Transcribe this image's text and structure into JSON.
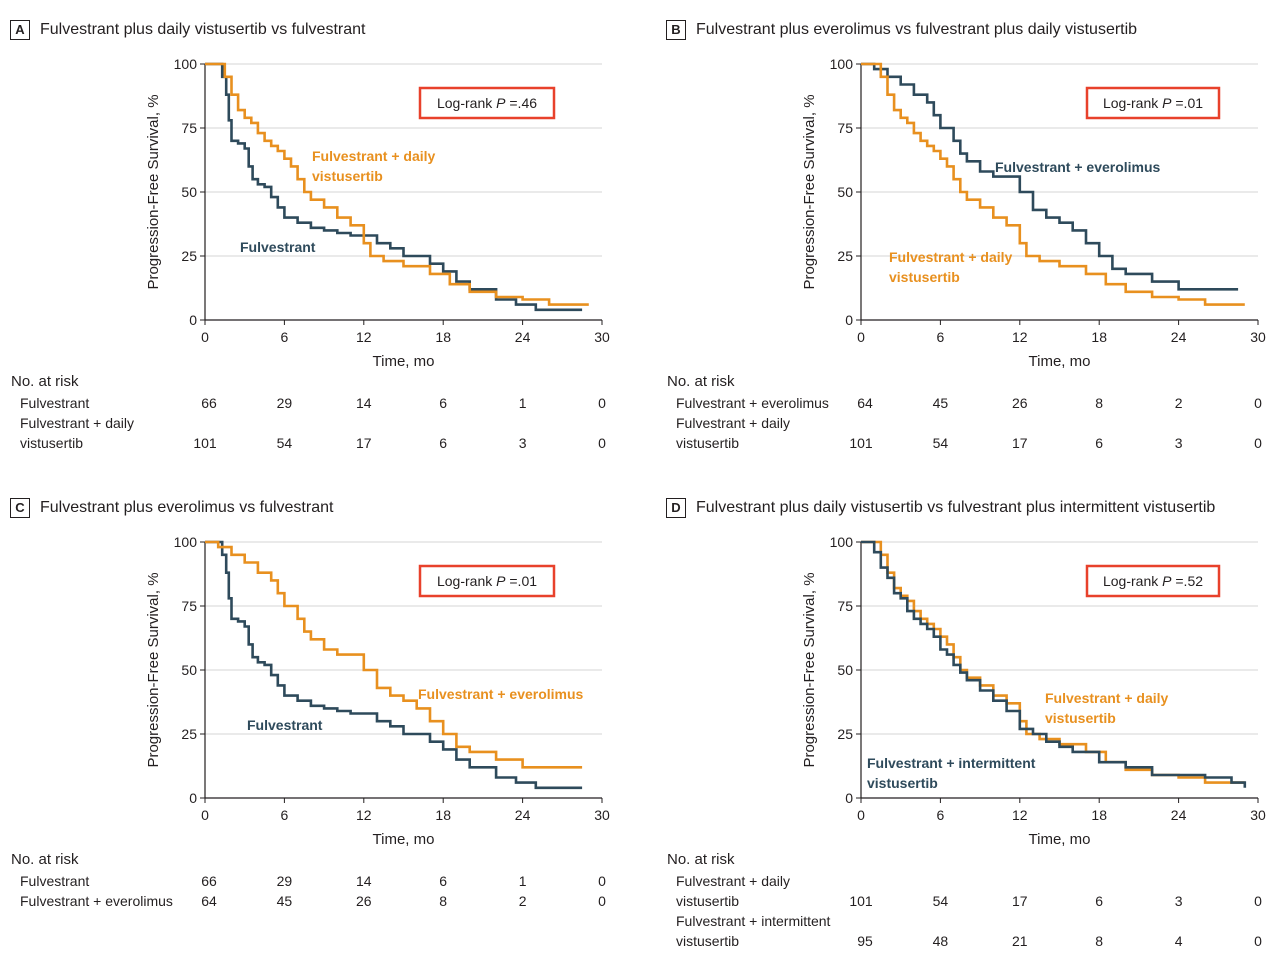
{
  "common": {
    "ylabel": "Progression-Free Survival, %",
    "xlabel": "Time, mo",
    "risk_header": "No. at risk",
    "logrank_prefix": "Log-rank ",
    "logrank_P": "P",
    "colors": {
      "navy": "#2e4a5b",
      "orange": "#e8901f",
      "box": "#e8412b",
      "grid": "#d4d4d4",
      "axis": "#231f20"
    }
  },
  "chart_data": [
    {
      "panel": "A",
      "type": "line",
      "title": "Fulvestrant plus daily vistusertib vs fulvestrant",
      "xlabel": "Time, mo",
      "ylabel": "Progression-Free Survival, %",
      "xlim": [
        0,
        30
      ],
      "ylim": [
        0,
        100
      ],
      "xticks": [
        0,
        6,
        12,
        18,
        24,
        30
      ],
      "yticks": [
        0,
        25,
        50,
        75,
        100
      ],
      "logrank_value": "=.46",
      "series": [
        {
          "name": "Fulvestrant",
          "label_lines": [
            "Fulvestrant"
          ],
          "color": "navy",
          "x": [
            0,
            1,
            1.3,
            1.6,
            1.8,
            2.0,
            2.5,
            3.0,
            3.3,
            3.6,
            4.0,
            4.5,
            5.0,
            5.5,
            6.0,
            7.0,
            8.0,
            9.0,
            10.0,
            11.0,
            12.0,
            13.0,
            14.0,
            15.0,
            17.0,
            18.0,
            19.0,
            20.0,
            22.0,
            23.5,
            25.0,
            28.5
          ],
          "y": [
            100,
            100,
            95,
            88,
            78,
            70,
            69,
            67,
            60,
            55,
            53,
            52,
            48,
            44,
            40,
            38,
            36,
            35,
            34,
            33,
            33,
            30,
            28,
            25,
            22,
            19,
            15,
            12,
            8,
            6,
            4,
            4
          ]
        },
        {
          "name": "Fulvestrant + daily vistusertib",
          "label_lines": [
            "Fulvestrant + daily",
            "vistusertib"
          ],
          "color": "orange",
          "x": [
            0,
            1,
            1.5,
            2.0,
            2.5,
            3.0,
            3.5,
            4.0,
            4.5,
            5.0,
            5.5,
            6.0,
            6.5,
            7.0,
            7.5,
            8.0,
            9.0,
            10.0,
            11.0,
            12.0,
            12.5,
            13.5,
            15.0,
            17.0,
            18.5,
            20.0,
            22.0,
            24.0,
            26.0,
            29.0
          ],
          "y": [
            100,
            100,
            95,
            88,
            82,
            79,
            77,
            73,
            70,
            68,
            66,
            63,
            60,
            55,
            50,
            47,
            44,
            40,
            37,
            30,
            25,
            23,
            21,
            18,
            14,
            11,
            9,
            8,
            6,
            6
          ]
        }
      ],
      "risk": [
        {
          "label_lines": [
            "Fulvestrant"
          ],
          "values": [
            "66",
            "29",
            "14",
            "6",
            "1",
            "0"
          ]
        },
        {
          "label_lines": [
            "Fulvestrant + daily",
            "vistusertib"
          ],
          "values": [
            "101",
            "54",
            "17",
            "6",
            "3",
            "0"
          ]
        }
      ]
    },
    {
      "panel": "B",
      "type": "line",
      "title": "Fulvestrant plus everolimus vs fulvestrant plus daily vistusertib",
      "xlabel": "Time, mo",
      "ylabel": "Progression-Free Survival, %",
      "xlim": [
        0,
        30
      ],
      "ylim": [
        0,
        100
      ],
      "xticks": [
        0,
        6,
        12,
        18,
        24,
        30
      ],
      "yticks": [
        0,
        25,
        50,
        75,
        100
      ],
      "logrank_value": "=.01",
      "series": [
        {
          "name": "Fulvestrant + everolimus",
          "label_lines": [
            "Fulvestrant + everolimus"
          ],
          "color": "navy",
          "x": [
            0,
            1,
            2,
            3,
            4,
            5,
            5.5,
            6,
            6.5,
            7,
            7.5,
            8,
            9,
            10,
            11,
            12,
            13,
            14,
            15,
            16,
            17,
            18,
            19,
            20,
            22,
            24,
            26,
            28.5
          ],
          "y": [
            100,
            98,
            95,
            92,
            88,
            85,
            80,
            75,
            75,
            70,
            65,
            62,
            58,
            56,
            56,
            50,
            43,
            40,
            38,
            35,
            30,
            25,
            20,
            18,
            15,
            12,
            12,
            12
          ]
        },
        {
          "name": "Fulvestrant + daily vistusertib",
          "label_lines": [
            "Fulvestrant + daily",
            "vistusertib"
          ],
          "color": "orange",
          "x": [
            0,
            1,
            1.5,
            2.0,
            2.5,
            3.0,
            3.5,
            4.0,
            4.5,
            5.0,
            5.5,
            6.0,
            6.5,
            7.0,
            7.5,
            8.0,
            9.0,
            10.0,
            11.0,
            12.0,
            12.5,
            13.5,
            15.0,
            17.0,
            18.5,
            20.0,
            22.0,
            24.0,
            26.0,
            29.0
          ],
          "y": [
            100,
            100,
            95,
            88,
            82,
            79,
            77,
            73,
            70,
            68,
            66,
            63,
            60,
            55,
            50,
            47,
            44,
            40,
            37,
            30,
            25,
            23,
            21,
            18,
            14,
            11,
            9,
            8,
            6,
            6
          ]
        }
      ],
      "risk": [
        {
          "label_lines": [
            "Fulvestrant + everolimus"
          ],
          "values": [
            "64",
            "45",
            "26",
            "8",
            "2",
            "0"
          ]
        },
        {
          "label_lines": [
            "Fulvestrant + daily",
            "vistusertib"
          ],
          "values": [
            "101",
            "54",
            "17",
            "6",
            "3",
            "0"
          ]
        }
      ]
    },
    {
      "panel": "C",
      "type": "line",
      "title": "Fulvestrant plus everolimus vs fulvestrant",
      "xlabel": "Time, mo",
      "ylabel": "Progression-Free Survival, %",
      "xlim": [
        0,
        30
      ],
      "ylim": [
        0,
        100
      ],
      "xticks": [
        0,
        6,
        12,
        18,
        24,
        30
      ],
      "yticks": [
        0,
        25,
        50,
        75,
        100
      ],
      "logrank_value": "=.01",
      "series": [
        {
          "name": "Fulvestrant",
          "label_lines": [
            "Fulvestrant"
          ],
          "color": "navy",
          "x": [
            0,
            1,
            1.3,
            1.6,
            1.8,
            2.0,
            2.5,
            3.0,
            3.3,
            3.6,
            4.0,
            4.5,
            5.0,
            5.5,
            6.0,
            7.0,
            8.0,
            9.0,
            10.0,
            11.0,
            12.0,
            13.0,
            14.0,
            15.0,
            17.0,
            18.0,
            19.0,
            20.0,
            22.0,
            23.5,
            25.0,
            28.5
          ],
          "y": [
            100,
            100,
            95,
            88,
            78,
            70,
            69,
            67,
            60,
            55,
            53,
            52,
            48,
            44,
            40,
            38,
            36,
            35,
            34,
            33,
            33,
            30,
            28,
            25,
            22,
            19,
            15,
            12,
            8,
            6,
            4,
            4
          ]
        },
        {
          "name": "Fulvestrant + everolimus",
          "label_lines": [
            "Fulvestrant + everolimus"
          ],
          "color": "orange",
          "x": [
            0,
            1,
            2,
            3,
            4,
            5,
            5.5,
            6,
            6.5,
            7,
            7.5,
            8,
            9,
            10,
            11,
            12,
            13,
            14,
            15,
            16,
            17,
            18,
            19,
            20,
            22,
            24,
            26,
            28.5
          ],
          "y": [
            100,
            98,
            95,
            92,
            88,
            85,
            80,
            75,
            75,
            70,
            65,
            62,
            58,
            56,
            56,
            50,
            43,
            40,
            38,
            35,
            30,
            25,
            20,
            18,
            15,
            12,
            12,
            12
          ]
        }
      ],
      "risk": [
        {
          "label_lines": [
            "Fulvestrant"
          ],
          "values": [
            "66",
            "29",
            "14",
            "6",
            "1",
            "0"
          ]
        },
        {
          "label_lines": [
            "Fulvestrant + everolimus"
          ],
          "values": [
            "64",
            "45",
            "26",
            "8",
            "2",
            "0"
          ]
        }
      ]
    },
    {
      "panel": "D",
      "type": "line",
      "title": "Fulvestrant plus daily vistusertib vs fulvestrant plus intermittent vistusertib",
      "xlabel": "Time, mo",
      "ylabel": "Progression-Free Survival, %",
      "xlim": [
        0,
        30
      ],
      "ylim": [
        0,
        100
      ],
      "xticks": [
        0,
        6,
        12,
        18,
        24,
        30
      ],
      "yticks": [
        0,
        25,
        50,
        75,
        100
      ],
      "logrank_value": "=.52",
      "series": [
        {
          "name": "Fulvestrant + daily vistusertib",
          "label_lines": [
            "Fulvestrant + daily",
            "vistusertib"
          ],
          "color": "orange",
          "x": [
            0,
            1,
            1.5,
            2.0,
            2.5,
            3.0,
            3.5,
            4.0,
            4.5,
            5.0,
            5.5,
            6.0,
            6.5,
            7.0,
            7.5,
            8.0,
            9.0,
            10.0,
            11.0,
            12.0,
            12.5,
            13.5,
            15.0,
            17.0,
            18.5,
            20.0,
            22.0,
            24.0,
            26.0,
            29.0
          ],
          "y": [
            100,
            100,
            95,
            88,
            82,
            79,
            77,
            73,
            70,
            68,
            66,
            63,
            60,
            55,
            50,
            47,
            44,
            40,
            37,
            30,
            25,
            23,
            21,
            18,
            14,
            11,
            9,
            8,
            6,
            6
          ]
        },
        {
          "name": "Fulvestrant + intermittent vistusertib",
          "label_lines": [
            "Fulvestrant + intermittent",
            "vistusertib"
          ],
          "color": "navy",
          "x": [
            0,
            1.0,
            1.5,
            2.0,
            2.5,
            3.0,
            3.5,
            4.0,
            4.5,
            5.0,
            5.5,
            6.0,
            6.5,
            7.0,
            7.5,
            8.0,
            9.0,
            10.0,
            11.0,
            12.0,
            13.0,
            14.0,
            15.0,
            16.0,
            18.0,
            20.0,
            22.0,
            24.0,
            26.0,
            28.0,
            29.0
          ],
          "y": [
            100,
            96,
            90,
            86,
            80,
            78,
            73,
            70,
            68,
            66,
            63,
            58,
            56,
            52,
            49,
            46,
            42,
            38,
            34,
            27,
            25,
            22,
            20,
            18,
            14,
            12,
            9,
            9,
            8,
            6,
            4
          ]
        }
      ],
      "risk": [
        {
          "label_lines": [
            "Fulvestrant + daily",
            "vistusertib"
          ],
          "values": [
            "101",
            "54",
            "17",
            "6",
            "3",
            "0"
          ]
        },
        {
          "label_lines": [
            "Fulvestrant + intermittent",
            "vistusertib"
          ],
          "values": [
            "95",
            "48",
            "21",
            "8",
            "4",
            "0"
          ]
        }
      ]
    }
  ]
}
